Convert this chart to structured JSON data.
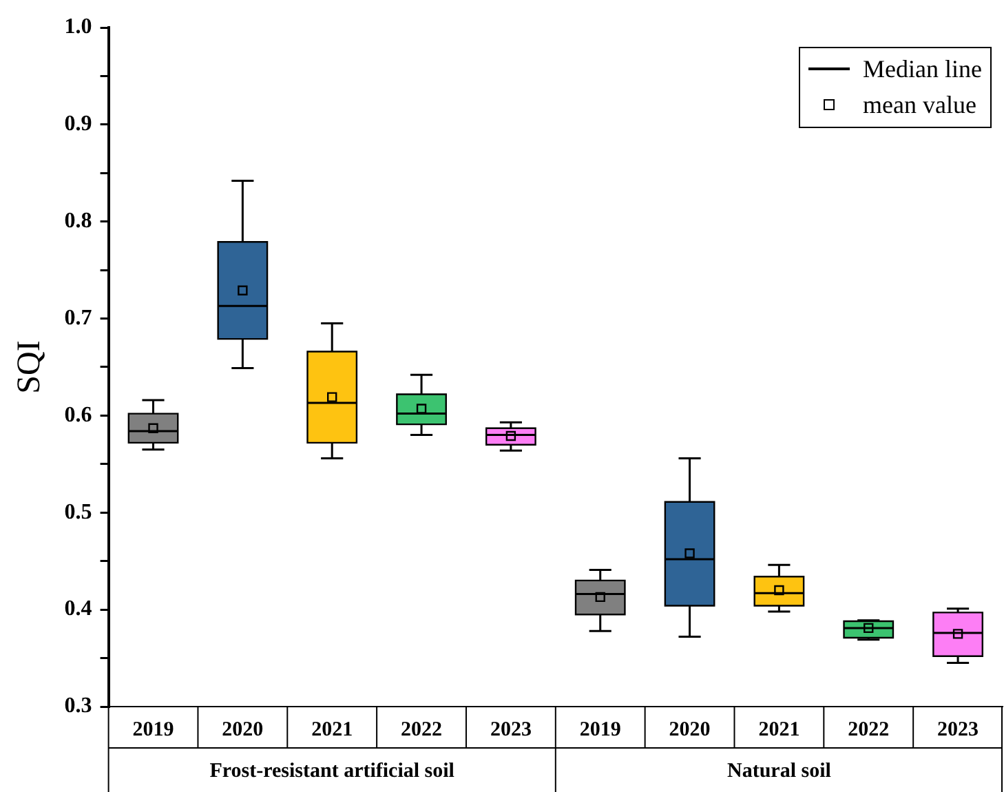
{
  "chart_data": {
    "type": "box",
    "ylabel": "SQI",
    "categories": [
      "2019",
      "2020",
      "2021",
      "2022",
      "2023",
      "2019",
      "2020",
      "2021",
      "2022",
      "2023"
    ],
    "colors": [
      "#808080",
      "#2f6496",
      "#fec311",
      "#3cc370",
      "#fd7ef5",
      "#808080",
      "#2f6496",
      "#fec311",
      "#3cc370",
      "#fd7ef5"
    ],
    "boxes": [
      {
        "low": 0.565,
        "q1": 0.572,
        "median": 0.584,
        "q3": 0.602,
        "high": 0.616,
        "mean": 0.587
      },
      {
        "low": 0.649,
        "q1": 0.679,
        "median": 0.713,
        "q3": 0.779,
        "high": 0.842,
        "mean": 0.729
      },
      {
        "low": 0.556,
        "q1": 0.572,
        "median": 0.613,
        "q3": 0.666,
        "high": 0.695,
        "mean": 0.619
      },
      {
        "low": 0.58,
        "q1": 0.591,
        "median": 0.602,
        "q3": 0.622,
        "high": 0.642,
        "mean": 0.607
      },
      {
        "low": 0.564,
        "q1": 0.57,
        "median": 0.58,
        "q3": 0.587,
        "high": 0.593,
        "mean": 0.579
      },
      {
        "low": 0.378,
        "q1": 0.395,
        "median": 0.416,
        "q3": 0.43,
        "high": 0.441,
        "mean": 0.413
      },
      {
        "low": 0.372,
        "q1": 0.404,
        "median": 0.452,
        "q3": 0.511,
        "high": 0.556,
        "mean": 0.458
      },
      {
        "low": 0.398,
        "q1": 0.404,
        "median": 0.417,
        "q3": 0.434,
        "high": 0.446,
        "mean": 0.42
      },
      {
        "low": 0.369,
        "q1": 0.371,
        "median": 0.381,
        "q3": 0.388,
        "high": 0.389,
        "mean": 0.381
      },
      {
        "low": 0.345,
        "q1": 0.352,
        "median": 0.376,
        "q3": 0.397,
        "high": 0.401,
        "mean": 0.375
      }
    ],
    "ylim": [
      0.3,
      1.0
    ],
    "yticks": [
      0.3,
      {
        "value": 0.35,
        "label": null
      },
      0.4,
      {
        "value": 0.45,
        "label": null
      },
      0.5,
      {
        "value": 0.55,
        "label": null
      },
      0.6,
      {
        "value": 0.65,
        "label": null
      },
      0.7,
      {
        "value": 0.75,
        "label": null
      },
      0.8,
      {
        "value": 0.85,
        "label": null
      },
      0.9,
      {
        "value": 0.95,
        "label": null
      },
      {
        "value": 1.0,
        "label": "1.0"
      }
    ],
    "annotations": [
      "Frost-resistant artificial soil",
      "Natural soil",
      "Median line",
      "mean value"
    ],
    "grid": false
  }
}
